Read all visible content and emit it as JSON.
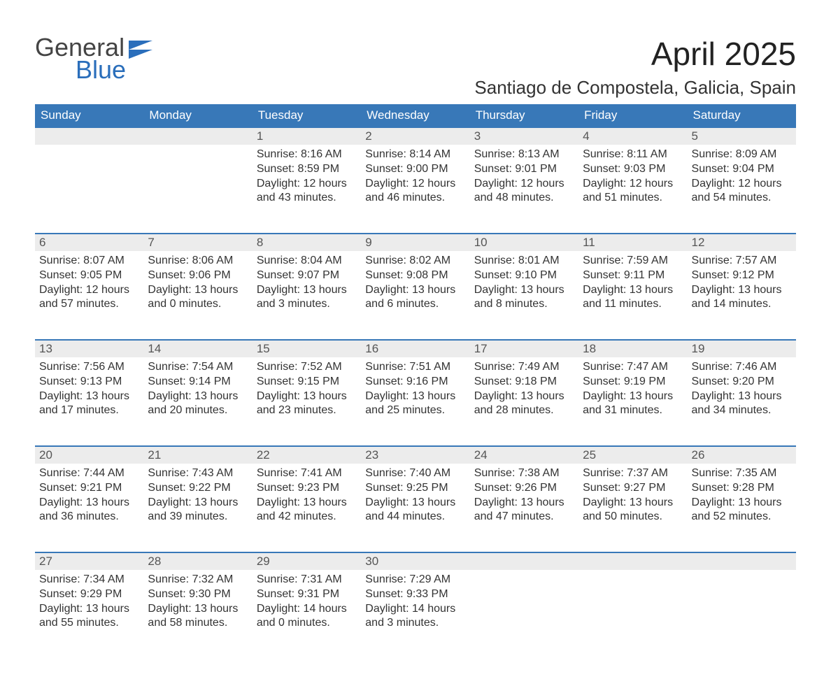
{
  "brand": {
    "line1": "General",
    "line2": "Blue",
    "color1": "#444444",
    "color2": "#2a6ebb"
  },
  "title": "April 2025",
  "subtitle": "Santiago de Compostela, Galicia, Spain",
  "theme": {
    "header_bg": "#3878b8",
    "header_text": "#ffffff",
    "daynum_bg": "#ececec",
    "daynum_border": "#3878b8",
    "body_text": "#333333",
    "page_bg": "#ffffff",
    "title_fontsize": 46,
    "subtitle_fontsize": 26,
    "cell_fontsize": 16
  },
  "weekdays": [
    "Sunday",
    "Monday",
    "Tuesday",
    "Wednesday",
    "Thursday",
    "Friday",
    "Saturday"
  ],
  "labels": {
    "sunrise": "Sunrise:",
    "sunset": "Sunset:",
    "daylight": "Daylight:"
  },
  "weeks": [
    [
      null,
      null,
      {
        "n": "1",
        "sunrise": "8:16 AM",
        "sunset": "8:59 PM",
        "daylight": "12 hours and 43 minutes."
      },
      {
        "n": "2",
        "sunrise": "8:14 AM",
        "sunset": "9:00 PM",
        "daylight": "12 hours and 46 minutes."
      },
      {
        "n": "3",
        "sunrise": "8:13 AM",
        "sunset": "9:01 PM",
        "daylight": "12 hours and 48 minutes."
      },
      {
        "n": "4",
        "sunrise": "8:11 AM",
        "sunset": "9:03 PM",
        "daylight": "12 hours and 51 minutes."
      },
      {
        "n": "5",
        "sunrise": "8:09 AM",
        "sunset": "9:04 PM",
        "daylight": "12 hours and 54 minutes."
      }
    ],
    [
      {
        "n": "6",
        "sunrise": "8:07 AM",
        "sunset": "9:05 PM",
        "daylight": "12 hours and 57 minutes."
      },
      {
        "n": "7",
        "sunrise": "8:06 AM",
        "sunset": "9:06 PM",
        "daylight": "13 hours and 0 minutes."
      },
      {
        "n": "8",
        "sunrise": "8:04 AM",
        "sunset": "9:07 PM",
        "daylight": "13 hours and 3 minutes."
      },
      {
        "n": "9",
        "sunrise": "8:02 AM",
        "sunset": "9:08 PM",
        "daylight": "13 hours and 6 minutes."
      },
      {
        "n": "10",
        "sunrise": "8:01 AM",
        "sunset": "9:10 PM",
        "daylight": "13 hours and 8 minutes."
      },
      {
        "n": "11",
        "sunrise": "7:59 AM",
        "sunset": "9:11 PM",
        "daylight": "13 hours and 11 minutes."
      },
      {
        "n": "12",
        "sunrise": "7:57 AM",
        "sunset": "9:12 PM",
        "daylight": "13 hours and 14 minutes."
      }
    ],
    [
      {
        "n": "13",
        "sunrise": "7:56 AM",
        "sunset": "9:13 PM",
        "daylight": "13 hours and 17 minutes."
      },
      {
        "n": "14",
        "sunrise": "7:54 AM",
        "sunset": "9:14 PM",
        "daylight": "13 hours and 20 minutes."
      },
      {
        "n": "15",
        "sunrise": "7:52 AM",
        "sunset": "9:15 PM",
        "daylight": "13 hours and 23 minutes."
      },
      {
        "n": "16",
        "sunrise": "7:51 AM",
        "sunset": "9:16 PM",
        "daylight": "13 hours and 25 minutes."
      },
      {
        "n": "17",
        "sunrise": "7:49 AM",
        "sunset": "9:18 PM",
        "daylight": "13 hours and 28 minutes."
      },
      {
        "n": "18",
        "sunrise": "7:47 AM",
        "sunset": "9:19 PM",
        "daylight": "13 hours and 31 minutes."
      },
      {
        "n": "19",
        "sunrise": "7:46 AM",
        "sunset": "9:20 PM",
        "daylight": "13 hours and 34 minutes."
      }
    ],
    [
      {
        "n": "20",
        "sunrise": "7:44 AM",
        "sunset": "9:21 PM",
        "daylight": "13 hours and 36 minutes."
      },
      {
        "n": "21",
        "sunrise": "7:43 AM",
        "sunset": "9:22 PM",
        "daylight": "13 hours and 39 minutes."
      },
      {
        "n": "22",
        "sunrise": "7:41 AM",
        "sunset": "9:23 PM",
        "daylight": "13 hours and 42 minutes."
      },
      {
        "n": "23",
        "sunrise": "7:40 AM",
        "sunset": "9:25 PM",
        "daylight": "13 hours and 44 minutes."
      },
      {
        "n": "24",
        "sunrise": "7:38 AM",
        "sunset": "9:26 PM",
        "daylight": "13 hours and 47 minutes."
      },
      {
        "n": "25",
        "sunrise": "7:37 AM",
        "sunset": "9:27 PM",
        "daylight": "13 hours and 50 minutes."
      },
      {
        "n": "26",
        "sunrise": "7:35 AM",
        "sunset": "9:28 PM",
        "daylight": "13 hours and 52 minutes."
      }
    ],
    [
      {
        "n": "27",
        "sunrise": "7:34 AM",
        "sunset": "9:29 PM",
        "daylight": "13 hours and 55 minutes."
      },
      {
        "n": "28",
        "sunrise": "7:32 AM",
        "sunset": "9:30 PM",
        "daylight": "13 hours and 58 minutes."
      },
      {
        "n": "29",
        "sunrise": "7:31 AM",
        "sunset": "9:31 PM",
        "daylight": "14 hours and 0 minutes."
      },
      {
        "n": "30",
        "sunrise": "7:29 AM",
        "sunset": "9:33 PM",
        "daylight": "14 hours and 3 minutes."
      },
      null,
      null,
      null
    ]
  ]
}
